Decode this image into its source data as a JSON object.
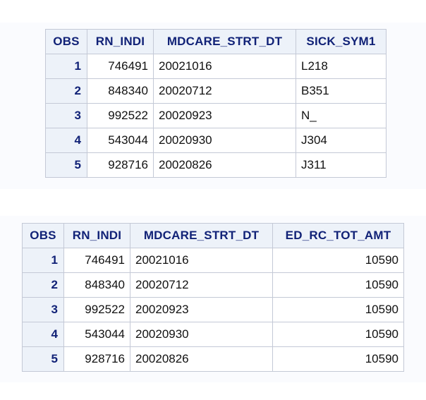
{
  "table1": {
    "headers": [
      "OBS",
      "RN_INDI",
      "MDCARE_STRT_DT",
      "SICK_SYM1"
    ],
    "rows": [
      {
        "obs": "1",
        "rn_indi": "746491",
        "mdcare_strt_dt": "20021016",
        "sick_sym1": "L218"
      },
      {
        "obs": "2",
        "rn_indi": "848340",
        "mdcare_strt_dt": "20020712",
        "sick_sym1": "B351"
      },
      {
        "obs": "3",
        "rn_indi": "992522",
        "mdcare_strt_dt": "20020923",
        "sick_sym1": "N_"
      },
      {
        "obs": "4",
        "rn_indi": "543044",
        "mdcare_strt_dt": "20020930",
        "sick_sym1": "J304"
      },
      {
        "obs": "5",
        "rn_indi": "928716",
        "mdcare_strt_dt": "20020826",
        "sick_sym1": "J311"
      }
    ]
  },
  "table2": {
    "headers": [
      "OBS",
      "RN_INDI",
      "MDCARE_STRT_DT",
      "ED_RC_TOT_AMT"
    ],
    "rows": [
      {
        "obs": "1",
        "rn_indi": "746491",
        "mdcare_strt_dt": "20021016",
        "ed_rc_tot_amt": "10590"
      },
      {
        "obs": "2",
        "rn_indi": "848340",
        "mdcare_strt_dt": "20020712",
        "ed_rc_tot_amt": "10590"
      },
      {
        "obs": "3",
        "rn_indi": "992522",
        "mdcare_strt_dt": "20020923",
        "ed_rc_tot_amt": "10590"
      },
      {
        "obs": "4",
        "rn_indi": "543044",
        "mdcare_strt_dt": "20020930",
        "ed_rc_tot_amt": "10590"
      },
      {
        "obs": "5",
        "rn_indi": "928716",
        "mdcare_strt_dt": "20020826",
        "ed_rc_tot_amt": "10590"
      }
    ]
  },
  "colors": {
    "header_bg": "#edf2f9",
    "header_text": "#112277",
    "border": "#c4c9d6",
    "panel_bg": "#fafbfe"
  }
}
